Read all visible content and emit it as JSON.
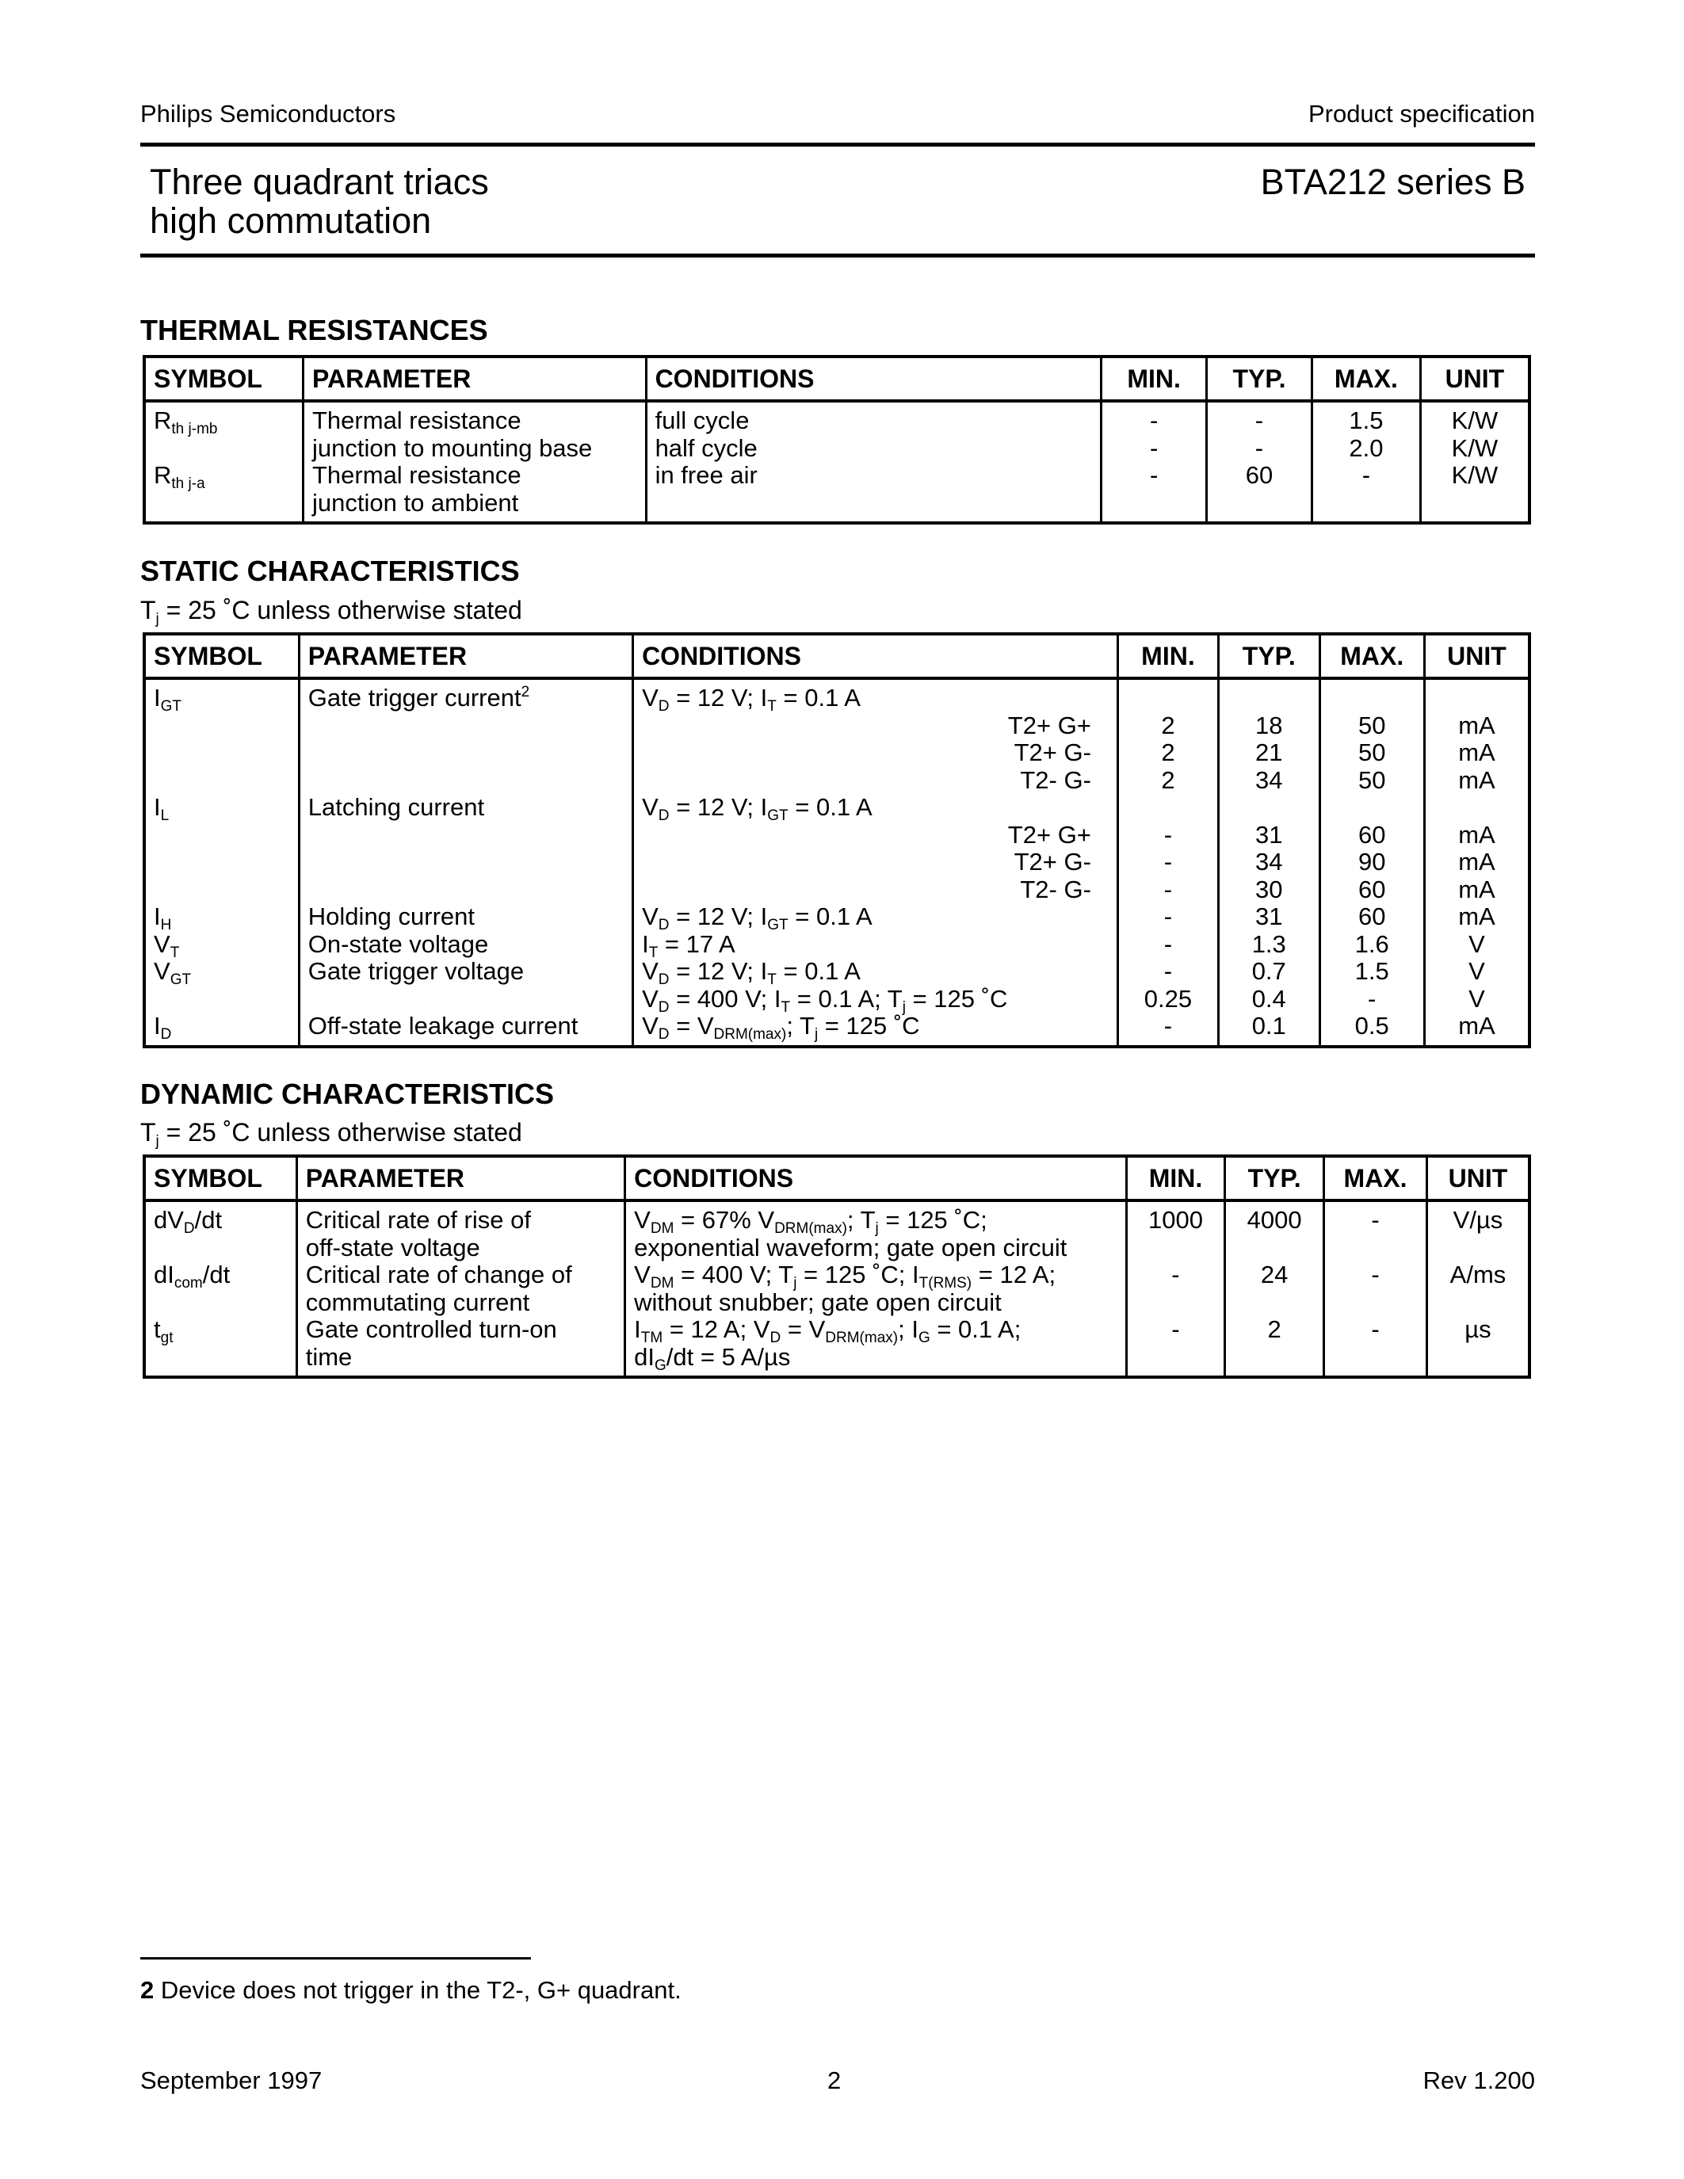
{
  "header": {
    "company": "Philips Semiconductors",
    "doc_type": "Product specification"
  },
  "title": {
    "line1": "Three quadrant triacs",
    "line2": "high commutation",
    "part": "BTA212 series B"
  },
  "columns": [
    "SYMBOL",
    "PARAMETER",
    "CONDITIONS",
    "MIN.",
    "TYP.",
    "MAX.",
    "UNIT"
  ],
  "thermal": {
    "heading": "THERMAL RESISTANCES",
    "rows": [
      {
        "symbol": "R_{th j-mb}",
        "parameter": "Thermal resistance",
        "conditions": "full cycle",
        "min": "-",
        "typ": "-",
        "max": "1.5",
        "unit": "K/W"
      },
      {
        "symbol": "",
        "parameter": "junction to mounting base",
        "conditions": "half cycle",
        "min": "-",
        "typ": "-",
        "max": "2.0",
        "unit": "K/W"
      },
      {
        "symbol": "R_{th j-a}",
        "parameter": "Thermal resistance",
        "conditions": "in free air",
        "min": "-",
        "typ": "60",
        "max": "-",
        "unit": "K/W"
      },
      {
        "symbol": "",
        "parameter": "junction to ambient",
        "conditions": "",
        "min": "",
        "typ": "",
        "max": "",
        "unit": ""
      }
    ]
  },
  "static": {
    "heading": "STATIC CHARACTERISTICS",
    "note": "T_{j} = 25 ˚C unless otherwise stated",
    "rows": [
      {
        "symbol": "I_{GT}",
        "parameter": "Gate trigger current^{2}",
        "conditions": "V_{D} = 12 V; I_{T} = 0.1 A",
        "min": "",
        "typ": "",
        "max": "",
        "unit": ""
      },
      {
        "symbol": "",
        "parameter": "",
        "conditions_right": "T2+ G+",
        "min": "2",
        "typ": "18",
        "max": "50",
        "unit": "mA"
      },
      {
        "symbol": "",
        "parameter": "",
        "conditions_right": "T2+ G-",
        "min": "2",
        "typ": "21",
        "max": "50",
        "unit": "mA"
      },
      {
        "symbol": "",
        "parameter": "",
        "conditions_right": "T2- G-",
        "min": "2",
        "typ": "34",
        "max": "50",
        "unit": "mA"
      },
      {
        "symbol": "I_{L}",
        "parameter": "Latching current",
        "conditions": "V_{D} = 12 V; I_{GT} = 0.1 A",
        "min": "",
        "typ": "",
        "max": "",
        "unit": ""
      },
      {
        "symbol": "",
        "parameter": "",
        "conditions_right": "T2+ G+",
        "min": "-",
        "typ": "31",
        "max": "60",
        "unit": "mA"
      },
      {
        "symbol": "",
        "parameter": "",
        "conditions_right": "T2+ G-",
        "min": "-",
        "typ": "34",
        "max": "90",
        "unit": "mA"
      },
      {
        "symbol": "",
        "parameter": "",
        "conditions_right": "T2- G-",
        "min": "-",
        "typ": "30",
        "max": "60",
        "unit": "mA"
      },
      {
        "symbol": "I_{H}",
        "parameter": "Holding current",
        "conditions": "V_{D} = 12 V; I_{GT} = 0.1 A",
        "min": "-",
        "typ": "31",
        "max": "60",
        "unit": "mA"
      },
      {
        "symbol": "V_{T}",
        "parameter": "On-state voltage",
        "conditions": "I_{T} = 17 A",
        "min": "-",
        "typ": "1.3",
        "max": "1.6",
        "unit": "V"
      },
      {
        "symbol": "V_{GT}",
        "parameter": "Gate trigger voltage",
        "conditions": "V_{D} = 12 V; I_{T} = 0.1 A",
        "min": "-",
        "typ": "0.7",
        "max": "1.5",
        "unit": "V"
      },
      {
        "symbol": "",
        "parameter": "",
        "conditions": "V_{D} = 400 V; I_{T} = 0.1 A; T_{j} = 125 ˚C",
        "min": "0.25",
        "typ": "0.4",
        "max": "-",
        "unit": "V"
      },
      {
        "symbol": "I_{D}",
        "parameter": "Off-state leakage current",
        "conditions": "V_{D} = V_{DRM(max)}; T_{j} = 125 ˚C",
        "min": "-",
        "typ": "0.1",
        "max": "0.5",
        "unit": "mA"
      }
    ]
  },
  "dynamic": {
    "heading": "DYNAMIC CHARACTERISTICS",
    "note": "T_{j} = 25 ˚C unless otherwise stated",
    "rows": [
      {
        "symbol": "dV_{D}/dt",
        "parameter": "Critical rate of rise of",
        "conditions": "V_{DM} = 67% V_{DRM(max)}; T_{j} = 125 ˚C;",
        "min": "1000",
        "typ": "4000",
        "max": "-",
        "unit": "V/µs"
      },
      {
        "symbol": "",
        "parameter": "off-state voltage",
        "conditions": "exponential waveform; gate open circuit",
        "min": "",
        "typ": "",
        "max": "",
        "unit": ""
      },
      {
        "symbol": "dI_{com}/dt",
        "parameter": "Critical rate of change of",
        "conditions": "V_{DM} = 400 V; T_{j} = 125 ˚C; I_{T(RMS)} = 12 A;",
        "min": "-",
        "typ": "24",
        "max": "-",
        "unit": "A/ms"
      },
      {
        "symbol": "",
        "parameter": "commutating current",
        "conditions": "without snubber; gate open circuit",
        "min": "",
        "typ": "",
        "max": "",
        "unit": ""
      },
      {
        "symbol": "t_{gt}",
        "parameter": "Gate controlled turn-on",
        "conditions": "I_{TM} = 12 A; V_{D} = V_{DRM(max)}; I_{G} = 0.1 A;",
        "min": "-",
        "typ": "2",
        "max": "-",
        "unit": "µs"
      },
      {
        "symbol": "",
        "parameter": "time",
        "conditions": "dI_{G}/dt = 5 A/µs",
        "min": "",
        "typ": "",
        "max": "",
        "unit": ""
      }
    ]
  },
  "footnote": {
    "number": "2",
    "text": " Device does not trigger in the T2-, G+ quadrant."
  },
  "footer": {
    "date": "September 1997",
    "page": "2",
    "revision": "Rev 1.200"
  }
}
